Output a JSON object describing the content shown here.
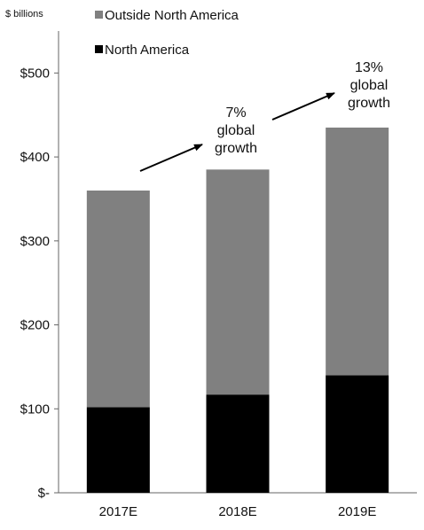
{
  "chart_data": {
    "type": "bar",
    "stacked": true,
    "unit_label": "$ billions",
    "categories": [
      "2017E",
      "2018E",
      "2019E"
    ],
    "series": [
      {
        "name": "North America",
        "color": "#000000",
        "values": [
          102,
          117,
          140
        ]
      },
      {
        "name": "Outside North America",
        "color": "#808080",
        "values": [
          258,
          268,
          295
        ]
      }
    ],
    "totals": [
      360,
      385,
      435
    ],
    "ylim": [
      0,
      550
    ],
    "yticks": [
      0,
      100,
      200,
      300,
      400,
      500
    ],
    "ytick_labels": [
      "$-",
      "$100",
      "$200",
      "$300",
      "$400",
      "$500"
    ],
    "grid": false,
    "legend": {
      "placement": "top-left",
      "items": [
        {
          "name": "Outside North America",
          "color": "#808080"
        },
        {
          "name": "North America",
          "color": "#000000"
        }
      ]
    },
    "annotations": [
      {
        "lines": [
          "7%",
          "global",
          "growth"
        ],
        "from_category": "2017E",
        "to_category": "2018E"
      },
      {
        "lines": [
          "13%",
          "global",
          "growth"
        ],
        "from_category": "2018E",
        "to_category": "2019E"
      }
    ]
  }
}
